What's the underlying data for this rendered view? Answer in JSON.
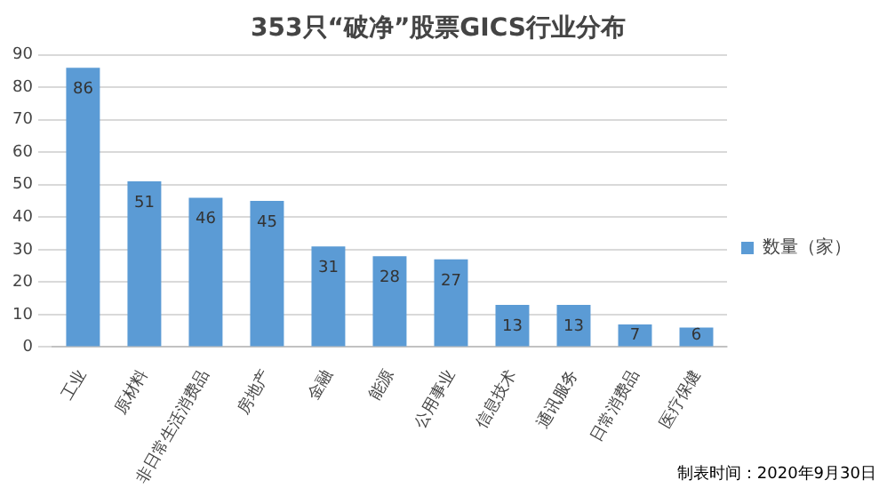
{
  "chart_data": {
    "type": "bar",
    "title": "353只“破净”股票GICS行业分布",
    "categories": [
      "工业",
      "原材料",
      "非日常生活消费品",
      "房地产",
      "金融",
      "能源",
      "公用事业",
      "信息技术",
      "通讯服务",
      "日常消费品",
      "医疗保健"
    ],
    "series": [
      {
        "name": "数量（家）",
        "color": "#5b9bd5",
        "values": [
          86,
          51,
          46,
          45,
          31,
          28,
          27,
          13,
          13,
          7,
          6
        ]
      }
    ],
    "ylim": [
      0,
      90
    ],
    "yticks": [
      0,
      10,
      20,
      30,
      40,
      50,
      60,
      70,
      80,
      90
    ],
    "grid": "y",
    "legend": "right",
    "data_labels": true,
    "annotations": [
      "制表时间：2020年9月30日"
    ]
  }
}
